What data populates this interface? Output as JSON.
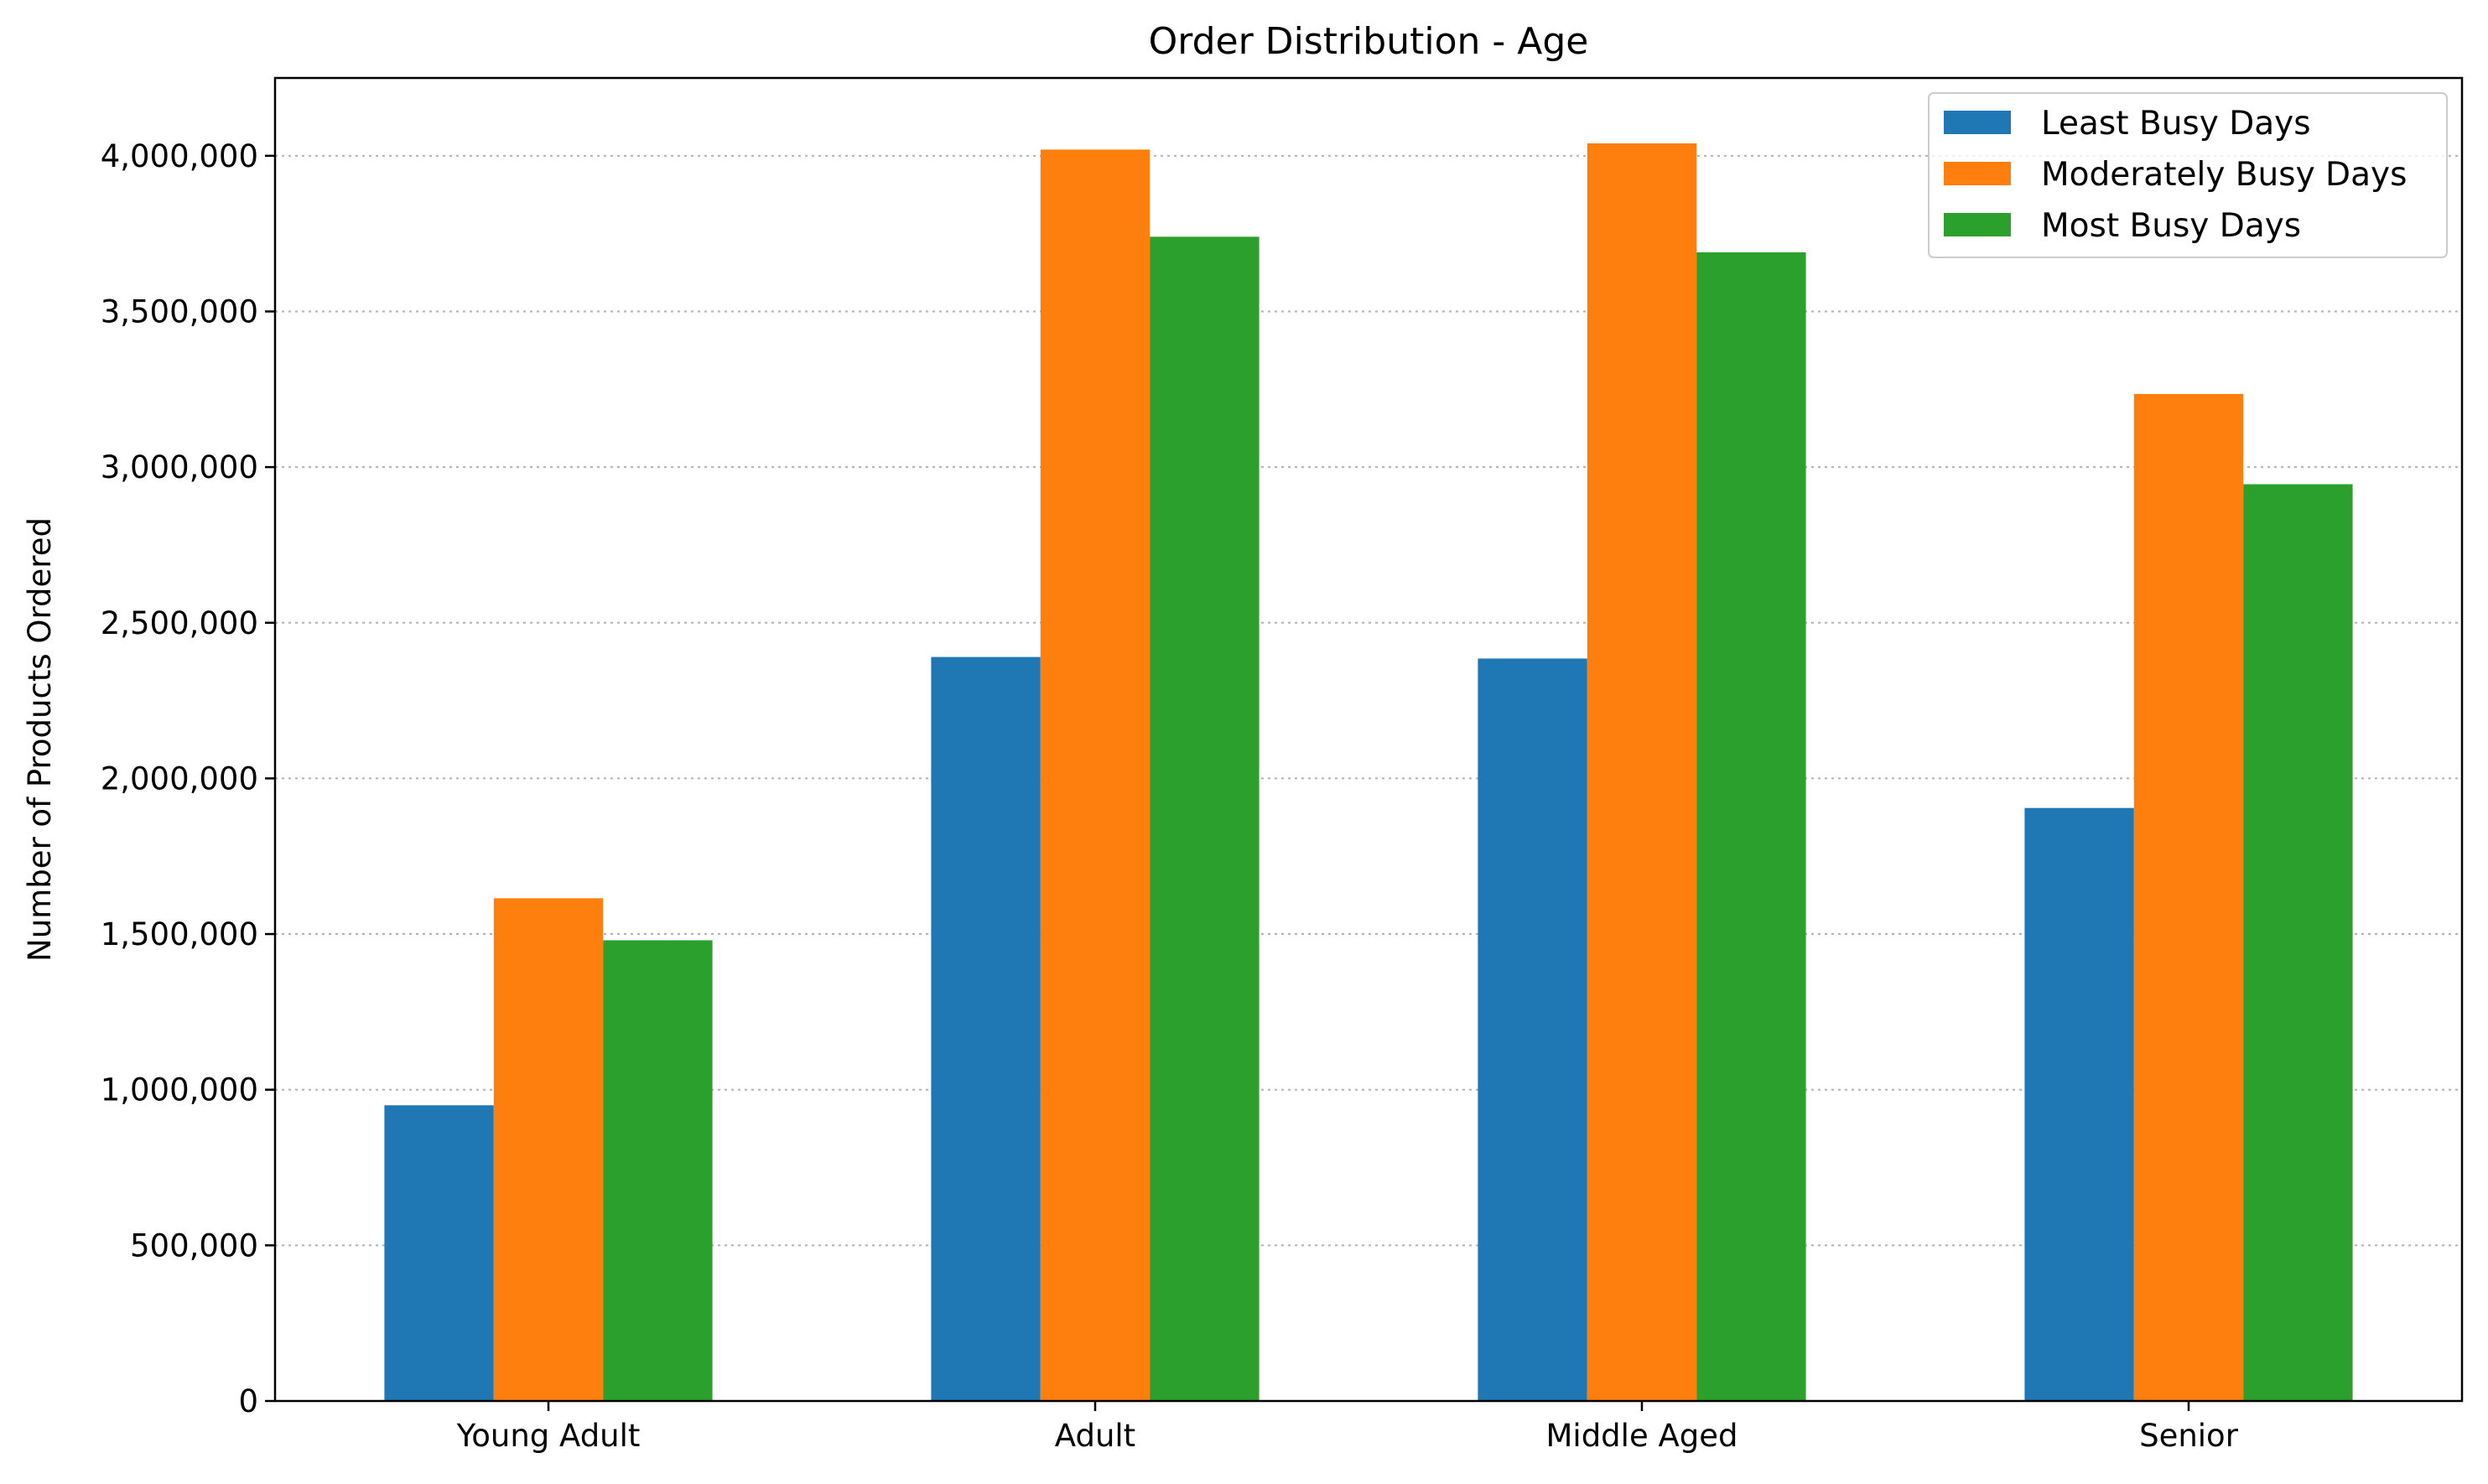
{
  "chart_data": {
    "type": "bar",
    "title": "Order Distribution - Age",
    "xlabel": "",
    "ylabel": "Number of Products Ordered",
    "categories": [
      "Young Adult",
      "Adult",
      "Middle Aged",
      "Senior"
    ],
    "series": [
      {
        "name": "Least Busy Days",
        "color": "#1f77b4",
        "values": [
          950000,
          2390000,
          2385000,
          1905000
        ]
      },
      {
        "name": "Moderately Busy Days",
        "color": "#ff7f0e",
        "values": [
          1615000,
          4020000,
          4040000,
          3235000
        ]
      },
      {
        "name": "Most Busy Days",
        "color": "#2ca02c",
        "values": [
          1480000,
          3740000,
          3690000,
          2945000
        ]
      }
    ],
    "ylim": [
      0,
      4250000
    ],
    "yticks": [
      0,
      500000,
      1000000,
      1500000,
      2000000,
      2500000,
      3000000,
      3500000,
      4000000
    ],
    "ytick_labels": [
      "0",
      "500,000",
      "1,000,000",
      "1,500,000",
      "2,000,000",
      "2,500,000",
      "3,000,000",
      "3,500,000",
      "4,000,000"
    ],
    "grid": "y-dotted",
    "legend_position": "top-right"
  }
}
